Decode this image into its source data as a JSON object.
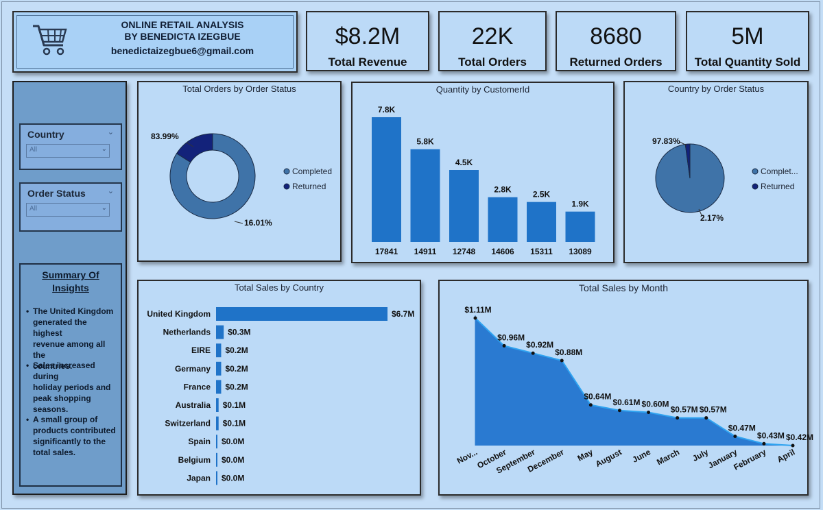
{
  "header": {
    "title_line1": "ONLINE RETAIL ANALYSIS",
    "title_line2": "BY BENEDICTA IZEGBUE",
    "email": "benedictaizegbue6@gmail.com",
    "icon": "shopping-cart-icon"
  },
  "kpis": [
    {
      "value": "$8.2M",
      "label": "Total Revenue"
    },
    {
      "value": "22K",
      "label": "Total Orders"
    },
    {
      "value": "8680",
      "label": "Returned Orders"
    },
    {
      "value": "5M",
      "label": "Total Quantity Sold"
    }
  ],
  "sidebar": {
    "slicers": [
      {
        "label": "Country",
        "value": "All"
      },
      {
        "label": "Order Status",
        "value": "All"
      }
    ],
    "insights": {
      "title_line1": "Summary Of",
      "title_line2": "Insights",
      "items": [
        {
          "lines": [
            "The United Kingdom",
            "generated the highest",
            "revenue among all the",
            "countries."
          ]
        },
        {
          "lines": [
            "Sales increased during",
            "holiday periods and",
            "peak shopping",
            "seasons."
          ]
        },
        {
          "lines": [
            "A small group of",
            "products contributed",
            "significantly to the",
            "total sales."
          ]
        }
      ]
    }
  },
  "colors": {
    "completed": "#3f73a8",
    "returned": "#13227a",
    "bar": "#1f73c8",
    "area": "#2a7ad1",
    "line": "#2fa3f0"
  },
  "chart_data": [
    {
      "type": "pie",
      "title": "Total Orders by Order Status",
      "labels": [
        "Completed",
        "Returned"
      ],
      "values": [
        83.99,
        16.01
      ],
      "data_labels": [
        "83.99%",
        "16.01%"
      ],
      "donut": true,
      "legend": "right"
    },
    {
      "type": "bar",
      "title": "Quantity by CustomerId",
      "categories": [
        "17841",
        "14911",
        "12748",
        "14606",
        "15311",
        "13089"
      ],
      "values": [
        7.8,
        5.8,
        4.5,
        2.8,
        2.5,
        1.9
      ],
      "data_labels": [
        "7.8K",
        "5.8K",
        "4.5K",
        "2.8K",
        "2.5K",
        "1.9K"
      ],
      "ylim": [
        0,
        7.8
      ]
    },
    {
      "type": "pie",
      "title": "Country by Order Status",
      "labels": [
        "Complet...",
        "Returned"
      ],
      "values": [
        97.83,
        2.17
      ],
      "data_labels": [
        "97.83%",
        "2.17%"
      ],
      "donut": false,
      "legend": "right"
    },
    {
      "type": "bar",
      "orientation": "horizontal",
      "title": "Total Sales by Country",
      "categories": [
        "United Kingdom",
        "Netherlands",
        "EIRE",
        "Germany",
        "France",
        "Australia",
        "Switzerland",
        "Spain",
        "Belgium",
        "Japan"
      ],
      "values": [
        6.7,
        0.3,
        0.2,
        0.2,
        0.2,
        0.1,
        0.1,
        0.04,
        0.03,
        0.03
      ],
      "data_labels": [
        "$6.7M",
        "$0.3M",
        "$0.2M",
        "$0.2M",
        "$0.2M",
        "$0.1M",
        "$0.1M",
        "$0.0M",
        "$0.0M",
        "$0.0M"
      ],
      "xlim": [
        0,
        6.7
      ]
    },
    {
      "type": "area",
      "title": "Total Sales by Month",
      "categories": [
        "Nov...",
        "October",
        "September",
        "December",
        "May",
        "August",
        "June",
        "March",
        "July",
        "January",
        "February",
        "April"
      ],
      "values": [
        1.11,
        0.96,
        0.92,
        0.88,
        0.64,
        0.61,
        0.6,
        0.57,
        0.57,
        0.47,
        0.43,
        0.42
      ],
      "data_labels": [
        "$1.11M",
        "$0.96M",
        "$0.92M",
        "$0.88M",
        "$0.64M",
        "$0.61M",
        "$0.60M",
        "$0.57M",
        "$0.57M",
        "$0.47M",
        "$0.43M",
        "$0.42M"
      ],
      "ylim": [
        0.42,
        1.11
      ]
    }
  ]
}
